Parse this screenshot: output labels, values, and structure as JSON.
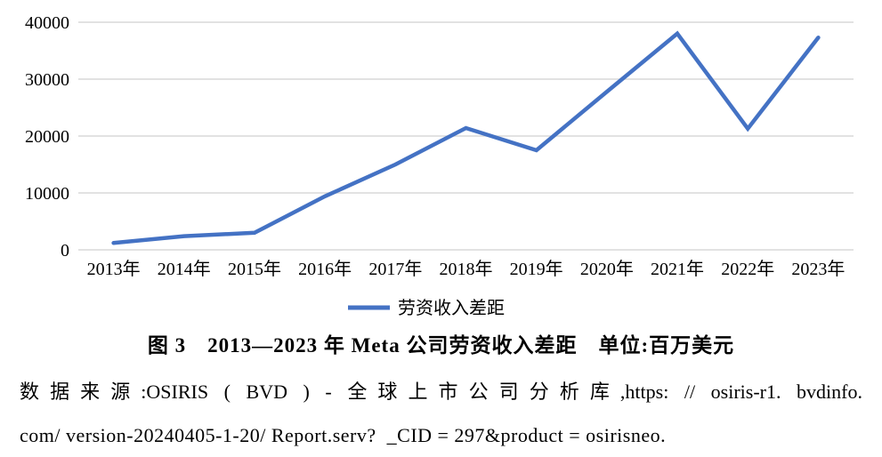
{
  "chart_data": {
    "type": "line",
    "title": "",
    "xlabel": "",
    "ylabel": "",
    "categories": [
      "2013年",
      "2014年",
      "2015年",
      "2016年",
      "2017年",
      "2018年",
      "2019年",
      "2020年",
      "2021年",
      "2022年",
      "2023年"
    ],
    "series": [
      {
        "name": "劳资收入差距",
        "color": "#4472C4",
        "values": [
          1200,
          2400,
          3000,
          9400,
          15000,
          21400,
          17500,
          27800,
          38000,
          21300,
          37300
        ]
      }
    ],
    "y_ticks": [
      0,
      10000,
      20000,
      30000,
      40000
    ],
    "ylim": [
      0,
      40000
    ],
    "grid": true,
    "legend_position": "bottom",
    "colors": {
      "gridline": "#D9D9D9",
      "text": "#000000"
    }
  },
  "caption": {
    "text": "图 3　2013—2023 年 Meta 公司劳资收入差距　单位:百万美元"
  },
  "source": {
    "line1": "数据来源:OSIRIS ( BVD ) - 全球上市公司分析库,https: // osiris-r1. bvdinfo.",
    "line2": "com/ version-20240405-1-20/ Report.serv?  _CID = 297&product = osirisneo."
  }
}
